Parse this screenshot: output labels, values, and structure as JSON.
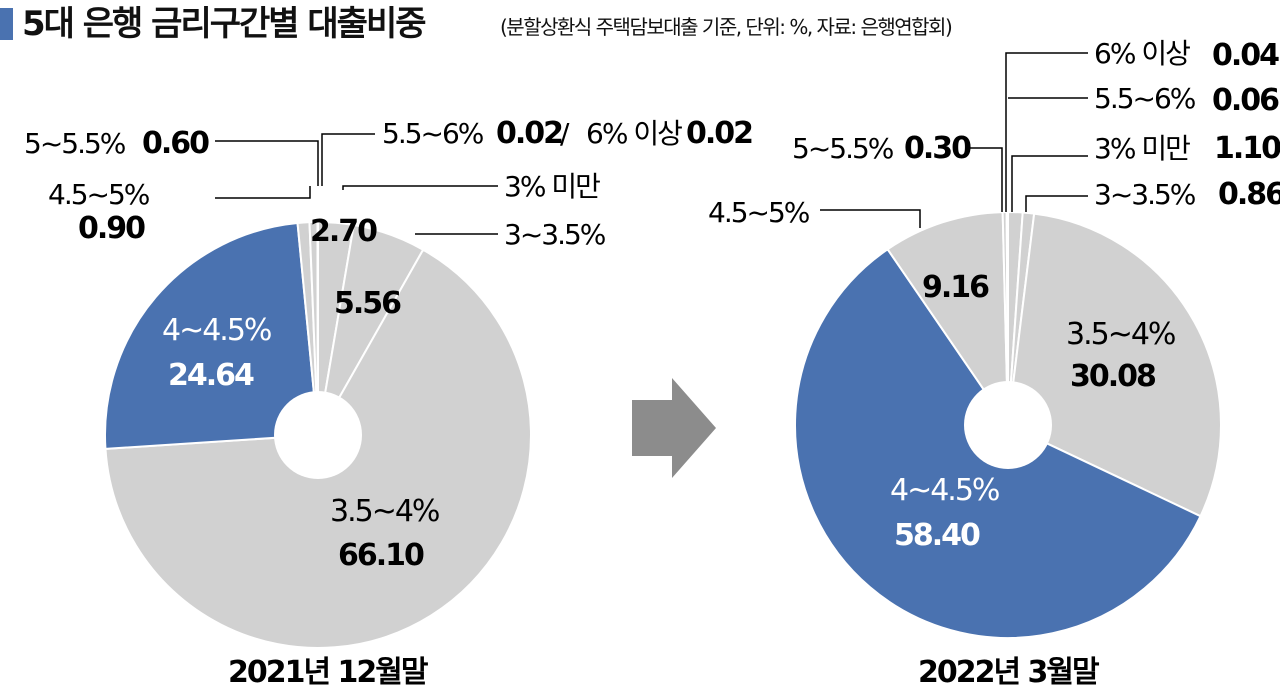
{
  "header": {
    "title": "5대 은행 금리구간별 대출비중",
    "subtitle": "(분할상환식 주택담보대출 기준, 단위: %, 자료: 은행연합회)"
  },
  "colors": {
    "accent": "#4a72b0",
    "gray": "#d1d1d1",
    "arrow": "#8c8c8c",
    "line": "#000000"
  },
  "chart_data": [
    {
      "type": "pie",
      "title": "2021년 12월말",
      "categories": [
        "3% 미만",
        "3~3.5%",
        "3.5~4%",
        "4~4.5%",
        "4.5~5%",
        "5~5.5%",
        "5.5~6%",
        "6% 이상"
      ],
      "values": [
        2.7,
        5.56,
        66.1,
        24.64,
        0.9,
        0.6,
        0.02,
        0.02
      ],
      "value_labels": [
        "2.70",
        "5.56",
        "66.10",
        "24.64",
        "0.90",
        "0.60",
        "0.02",
        "0.02"
      ],
      "combined_label": {
        "a": "5.5~6%",
        "a_value": "0.02",
        "sep": "/",
        "b": "6% 이상",
        "b_value": "0.02"
      },
      "highlight": "4~4.5%"
    },
    {
      "type": "pie",
      "title": "2022년 3월말",
      "categories": [
        "3% 미만",
        "3~3.5%",
        "3.5~4%",
        "4~4.5%",
        "4.5~5%",
        "5~5.5%",
        "5.5~6%",
        "6% 이상"
      ],
      "values": [
        1.1,
        0.86,
        30.08,
        58.4,
        9.16,
        0.3,
        0.06,
        0.04
      ],
      "value_labels": [
        "1.10",
        "0.86",
        "30.08",
        "58.40",
        "9.16",
        "0.30",
        "0.06",
        "0.04"
      ],
      "highlight": "4~4.5%"
    }
  ]
}
